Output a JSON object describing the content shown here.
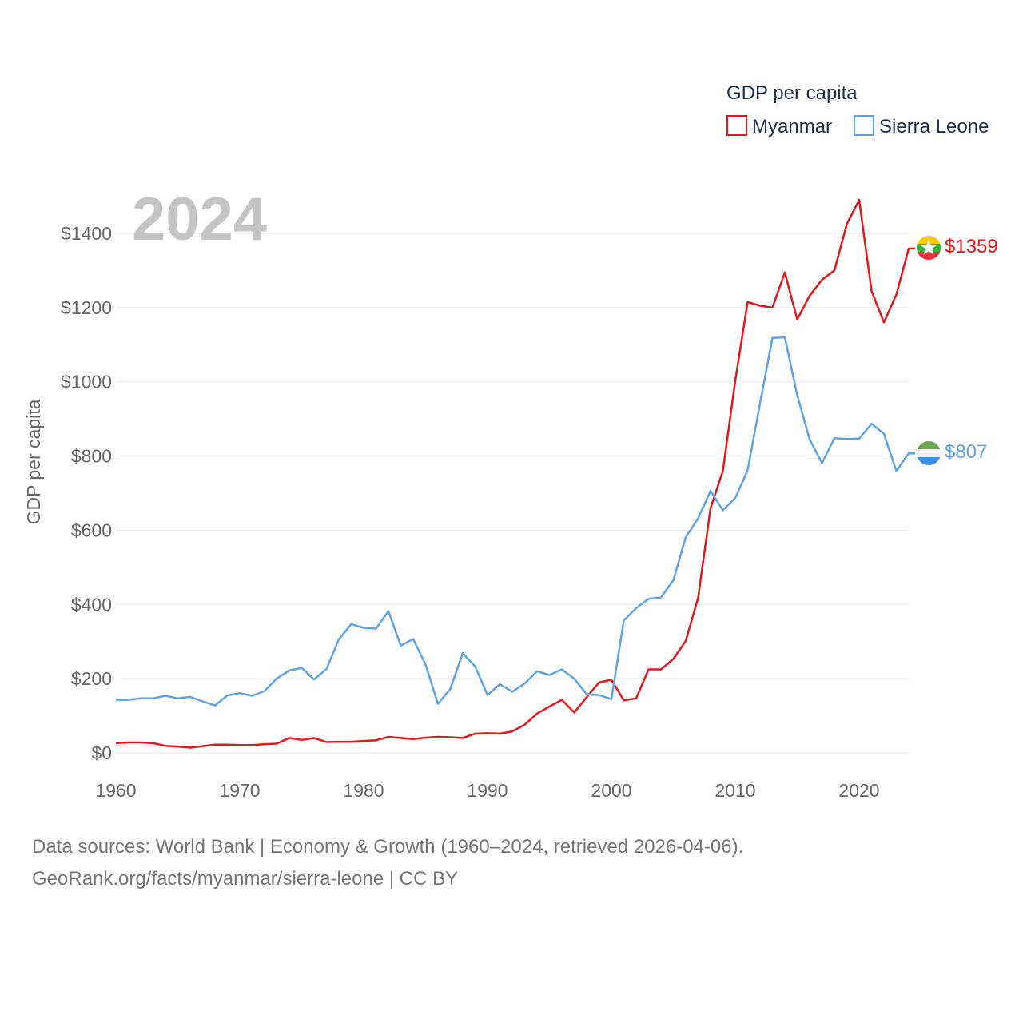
{
  "chart_data": {
    "type": "line",
    "title": "",
    "year_label": "2024",
    "xlabel": "",
    "ylabel": "GDP per capita",
    "xlim": [
      1960,
      2024
    ],
    "ylim": [
      0,
      1400
    ],
    "x_ticks": [
      1960,
      1970,
      1980,
      1990,
      2000,
      2010,
      2020
    ],
    "y_ticks": [
      0,
      200,
      400,
      600,
      800,
      1000,
      1200,
      1400
    ],
    "y_tick_labels": [
      "$0",
      "$200",
      "$400",
      "$600",
      "$800",
      "$1000",
      "$1200",
      "$1400"
    ],
    "legend": {
      "title": "GDP per capita",
      "placement": "top-right"
    },
    "x": [
      1960,
      1961,
      1962,
      1963,
      1964,
      1965,
      1966,
      1967,
      1968,
      1969,
      1970,
      1971,
      1972,
      1973,
      1974,
      1975,
      1976,
      1977,
      1978,
      1979,
      1980,
      1981,
      1982,
      1983,
      1984,
      1985,
      1986,
      1987,
      1988,
      1989,
      1990,
      1991,
      1992,
      1993,
      1994,
      1995,
      1996,
      1997,
      1998,
      1999,
      2000,
      2001,
      2002,
      2003,
      2004,
      2005,
      2006,
      2007,
      2008,
      2009,
      2010,
      2011,
      2012,
      2013,
      2014,
      2015,
      2016,
      2017,
      2018,
      2019,
      2020,
      2021,
      2022,
      2023,
      2024
    ],
    "series": [
      {
        "name": "Myanmar",
        "color": "#e8161b",
        "end_label": "$1359",
        "values": [
          26,
          28,
          28,
          26,
          19,
          17,
          14,
          18,
          22,
          22,
          21,
          21,
          23,
          25,
          40,
          35,
          40,
          29,
          30,
          30,
          32,
          34,
          43,
          40,
          37,
          41,
          43,
          42,
          40,
          52,
          53,
          52,
          58,
          76,
          106,
          125,
          143,
          109,
          150,
          190,
          197,
          142,
          147,
          225,
          225,
          253,
          302,
          418,
          659,
          760,
          1003,
          1215,
          1205,
          1200,
          1295,
          1168,
          1232,
          1275,
          1300,
          1425,
          1490,
          1245,
          1160,
          1235,
          1359
        ]
      },
      {
        "name": "Sierra Leone",
        "color": "#5ea3e4",
        "end_label": "$807",
        "values": [
          143,
          143,
          147,
          147,
          154,
          147,
          151,
          139,
          128,
          155,
          161,
          154,
          167,
          201,
          222,
          229,
          198,
          226,
          306,
          347,
          337,
          335,
          382,
          289,
          307,
          238,
          132,
          173,
          269,
          233,
          156,
          185,
          165,
          187,
          220,
          210,
          225,
          200,
          158,
          156,
          145,
          357,
          390,
          415,
          419,
          465,
          581,
          632,
          706,
          654,
          687,
          762,
          942,
          1118,
          1120,
          964,
          845,
          781,
          848,
          846,
          847,
          887,
          860,
          760,
          807
        ]
      }
    ]
  },
  "source": {
    "line1": "Data sources: World Bank | Economy & Growth (1960–2024, retrieved 2026-04-06).",
    "line2": "GeoRank.org/facts/myanmar/sierra-leone | CC BY"
  },
  "flags": {
    "myanmar": {
      "icon": "myanmar-flag-icon",
      "colors": [
        "#fecb00",
        "#34b233",
        "#ea2839",
        "#ffffff"
      ]
    },
    "sierra_leone": {
      "icon": "sierra-leone-flag-icon",
      "colors": [
        "#1eb53a",
        "#ffffff",
        "#0072c6"
      ]
    }
  },
  "colors": {
    "grid": "#e6e6e6",
    "axis_text": "#666666",
    "year_text": "#c4c4c4",
    "legend_text": "#1f2d4d"
  }
}
